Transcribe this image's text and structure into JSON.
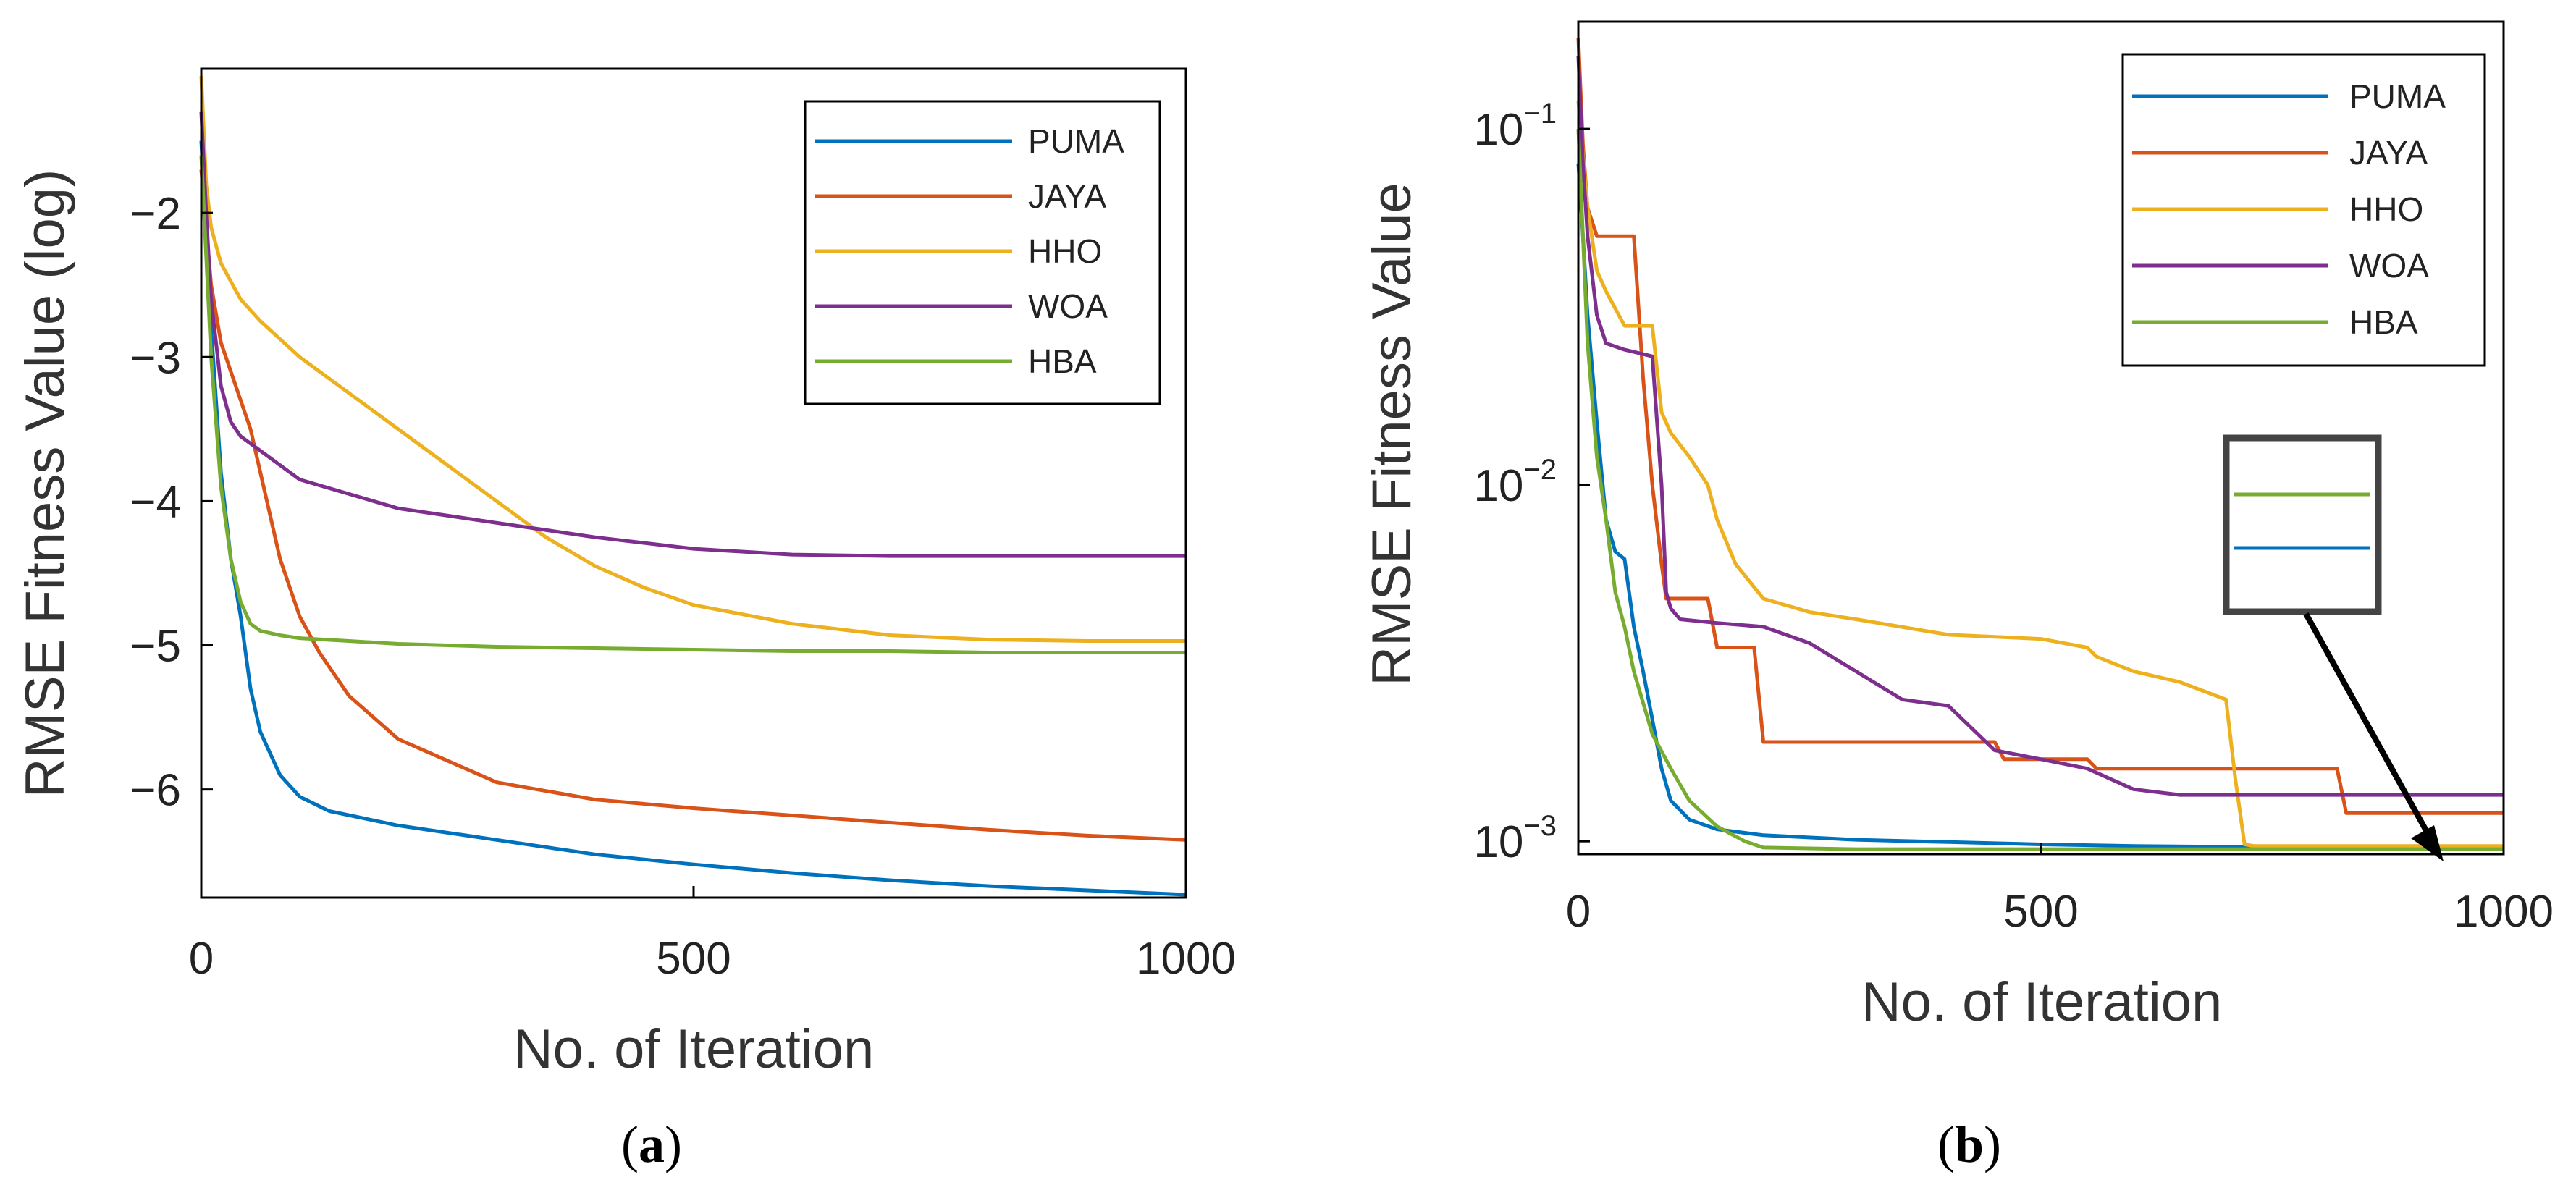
{
  "chart_data": [
    {
      "type": "line",
      "caption_letter": "a",
      "xlabel": "No. of Iteration",
      "ylabel": "RMSE Fitness Value (log)",
      "xlim": [
        0,
        1000
      ],
      "ylim": [
        -6.75,
        -1.0
      ],
      "yscale": "linear",
      "xticks": [
        {
          "v": 0,
          "label": "0"
        },
        {
          "v": 500,
          "label": "500"
        },
        {
          "v": 1000,
          "label": "1000"
        }
      ],
      "yticks": [
        {
          "v": -2,
          "label": "−2"
        },
        {
          "v": -3,
          "label": "−3"
        },
        {
          "v": -4,
          "label": "−4"
        },
        {
          "v": -5,
          "label": "−5"
        },
        {
          "v": -6,
          "label": "−6"
        }
      ],
      "legend_position": "top-right",
      "series": [
        {
          "name": "PUMA",
          "color": "#0072BD",
          "x": [
            0,
            10,
            20,
            30,
            40,
            50,
            60,
            80,
            100,
            130,
            200,
            300,
            400,
            500,
            600,
            700,
            800,
            900,
            1000
          ],
          "y": [
            -1.5,
            -2.8,
            -3.8,
            -4.4,
            -4.8,
            -5.3,
            -5.6,
            -5.9,
            -6.05,
            -6.15,
            -6.25,
            -6.35,
            -6.45,
            -6.52,
            -6.58,
            -6.63,
            -6.67,
            -6.7,
            -6.73
          ]
        },
        {
          "name": "JAYA",
          "color": "#D95319",
          "x": [
            0,
            10,
            20,
            30,
            40,
            50,
            60,
            70,
            80,
            100,
            120,
            150,
            200,
            300,
            400,
            500,
            600,
            700,
            800,
            900,
            1000
          ],
          "y": [
            -1.7,
            -2.5,
            -2.9,
            -3.1,
            -3.3,
            -3.5,
            -3.8,
            -4.1,
            -4.4,
            -4.8,
            -5.05,
            -5.35,
            -5.65,
            -5.95,
            -6.07,
            -6.13,
            -6.18,
            -6.23,
            -6.28,
            -6.32,
            -6.35
          ]
        },
        {
          "name": "HHO",
          "color": "#EDB120",
          "x": [
            0,
            5,
            10,
            20,
            40,
            60,
            100,
            150,
            200,
            250,
            300,
            350,
            400,
            450,
            500,
            600,
            700,
            800,
            900,
            1000
          ],
          "y": [
            -1.05,
            -1.8,
            -2.1,
            -2.35,
            -2.6,
            -2.75,
            -3.0,
            -3.25,
            -3.5,
            -3.75,
            -4.0,
            -4.25,
            -4.45,
            -4.6,
            -4.72,
            -4.85,
            -4.93,
            -4.96,
            -4.97,
            -4.97
          ]
        },
        {
          "name": "WOA",
          "color": "#7E2F8E",
          "x": [
            0,
            5,
            10,
            20,
            30,
            40,
            60,
            80,
            100,
            150,
            200,
            300,
            400,
            500,
            600,
            700,
            800,
            900,
            1000
          ],
          "y": [
            -1.3,
            -2.0,
            -2.6,
            -3.2,
            -3.45,
            -3.55,
            -3.65,
            -3.75,
            -3.85,
            -3.95,
            -4.05,
            -4.15,
            -4.25,
            -4.33,
            -4.37,
            -4.38,
            -4.38,
            -4.38,
            -4.38
          ]
        },
        {
          "name": "HBA",
          "color": "#77AC30",
          "x": [
            0,
            5,
            10,
            20,
            30,
            40,
            50,
            60,
            80,
            100,
            150,
            200,
            300,
            400,
            500,
            600,
            700,
            800,
            900,
            1000
          ],
          "y": [
            -1.6,
            -2.3,
            -3.0,
            -3.9,
            -4.4,
            -4.7,
            -4.85,
            -4.9,
            -4.93,
            -4.95,
            -4.97,
            -4.99,
            -5.01,
            -5.02,
            -5.03,
            -5.04,
            -5.04,
            -5.05,
            -5.05,
            -5.05
          ]
        }
      ]
    },
    {
      "type": "line",
      "caption_letter": "b",
      "xlabel": "No. of Iteration",
      "ylabel": "RMSE Fitness Value",
      "xlim": [
        0,
        1000
      ],
      "ylim": [
        0.00092,
        0.2
      ],
      "yscale": "log",
      "xticks": [
        {
          "v": 0,
          "label": "0"
        },
        {
          "v": 500,
          "label": "500"
        },
        {
          "v": 1000,
          "label": "1000"
        }
      ],
      "yticks": [
        {
          "v": 0.1,
          "base": "10",
          "exp": "−1"
        },
        {
          "v": 0.01,
          "base": "10",
          "exp": "−2"
        },
        {
          "v": 0.001,
          "base": "10",
          "exp": "−3"
        }
      ],
      "legend_position": "top-right",
      "inset": "zoom box showing HBA above PUMA near the final iteration",
      "series": [
        {
          "name": "PUMA",
          "color": "#0072BD",
          "x": [
            0,
            5,
            10,
            20,
            30,
            40,
            50,
            60,
            70,
            80,
            90,
            100,
            120,
            150,
            200,
            300,
            400,
            500,
            600,
            700,
            800,
            900,
            1000
          ],
          "y": [
            0.08,
            0.05,
            0.03,
            0.015,
            0.008,
            0.0065,
            0.0062,
            0.004,
            0.003,
            0.0022,
            0.0016,
            0.0013,
            0.00115,
            0.00108,
            0.00104,
            0.00101,
            0.000995,
            0.00098,
            0.00097,
            0.000965,
            0.00096,
            0.000955,
            0.00095
          ]
        },
        {
          "name": "JAYA",
          "color": "#D95319",
          "x": [
            0,
            5,
            10,
            20,
            40,
            60,
            70,
            80,
            90,
            95,
            100,
            140,
            150,
            190,
            200,
            400,
            450,
            460,
            550,
            560,
            820,
            830,
            1000
          ],
          "y": [
            0.18,
            0.09,
            0.06,
            0.05,
            0.05,
            0.05,
            0.02,
            0.01,
            0.006,
            0.0048,
            0.0048,
            0.0048,
            0.0035,
            0.0035,
            0.0019,
            0.0019,
            0.0019,
            0.0017,
            0.0017,
            0.0016,
            0.0016,
            0.0012,
            0.0012
          ]
        },
        {
          "name": "HHO",
          "color": "#EDB120",
          "x": [
            0,
            10,
            20,
            30,
            50,
            80,
            90,
            100,
            120,
            140,
            150,
            170,
            200,
            250,
            300,
            400,
            500,
            550,
            560,
            600,
            650,
            700,
            710,
            720,
            730,
            1000
          ],
          "y": [
            0.12,
            0.06,
            0.04,
            0.035,
            0.028,
            0.028,
            0.016,
            0.014,
            0.012,
            0.01,
            0.008,
            0.006,
            0.0048,
            0.0044,
            0.0042,
            0.0038,
            0.0037,
            0.0035,
            0.0033,
            0.003,
            0.0028,
            0.0025,
            0.0015,
            0.00098,
            0.00097,
            0.00097
          ]
        },
        {
          "name": "WOA",
          "color": "#7E2F8E",
          "x": [
            0,
            5,
            10,
            20,
            30,
            50,
            80,
            90,
            95,
            100,
            110,
            150,
            200,
            250,
            300,
            350,
            400,
            450,
            500,
            550,
            600,
            650,
            700,
            750,
            800,
            850,
            1000
          ],
          "y": [
            0.16,
            0.08,
            0.05,
            0.03,
            0.025,
            0.024,
            0.023,
            0.01,
            0.005,
            0.0045,
            0.0042,
            0.0041,
            0.004,
            0.0036,
            0.003,
            0.0025,
            0.0024,
            0.0018,
            0.0017,
            0.0016,
            0.0014,
            0.00135,
            0.00135,
            0.00135,
            0.00135,
            0.00135,
            0.00135
          ]
        },
        {
          "name": "HBA",
          "color": "#77AC30",
          "x": [
            0,
            5,
            10,
            20,
            30,
            40,
            50,
            60,
            80,
            100,
            120,
            150,
            180,
            200,
            300,
            400,
            500,
            600,
            700,
            800,
            900,
            1000
          ],
          "y": [
            0.1,
            0.05,
            0.025,
            0.012,
            0.008,
            0.005,
            0.004,
            0.003,
            0.002,
            0.0016,
            0.0013,
            0.0011,
            0.001,
            0.00096,
            0.00095,
            0.00095,
            0.00095,
            0.00095,
            0.00095,
            0.00095,
            0.00095,
            0.00095
          ]
        }
      ]
    }
  ]
}
